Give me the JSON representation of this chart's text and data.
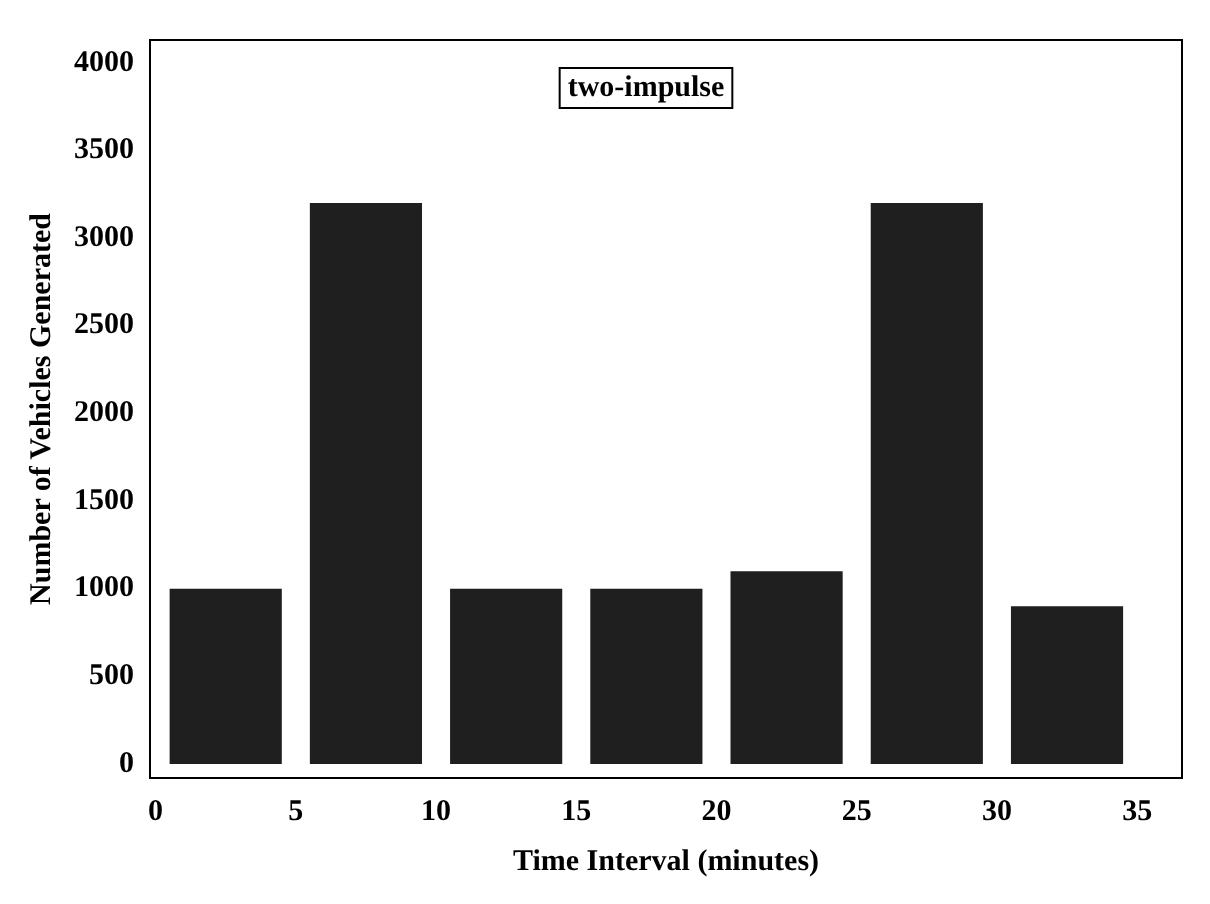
{
  "chart_data": {
    "type": "bar",
    "xlabel": "Time Interval (minutes)",
    "ylabel": "Number of Vehicles Generated",
    "x": [
      2.5,
      7.5,
      12.5,
      17.5,
      22.5,
      27.5,
      32.5
    ],
    "values": [
      1000,
      3200,
      1000,
      1000,
      1100,
      3200,
      900
    ],
    "color": "#1f1f1f",
    "xlim": [
      -0.2,
      36.6
    ],
    "xticks": [
      0,
      5,
      10,
      15,
      20,
      25,
      30,
      35
    ],
    "ylim": [
      -80,
      4130
    ],
    "yticks": [
      0,
      500,
      1000,
      1500,
      2000,
      2500,
      3000,
      3500,
      4000
    ],
    "annotations": [
      "two-impulse"
    ],
    "grid": false,
    "legend": false
  }
}
